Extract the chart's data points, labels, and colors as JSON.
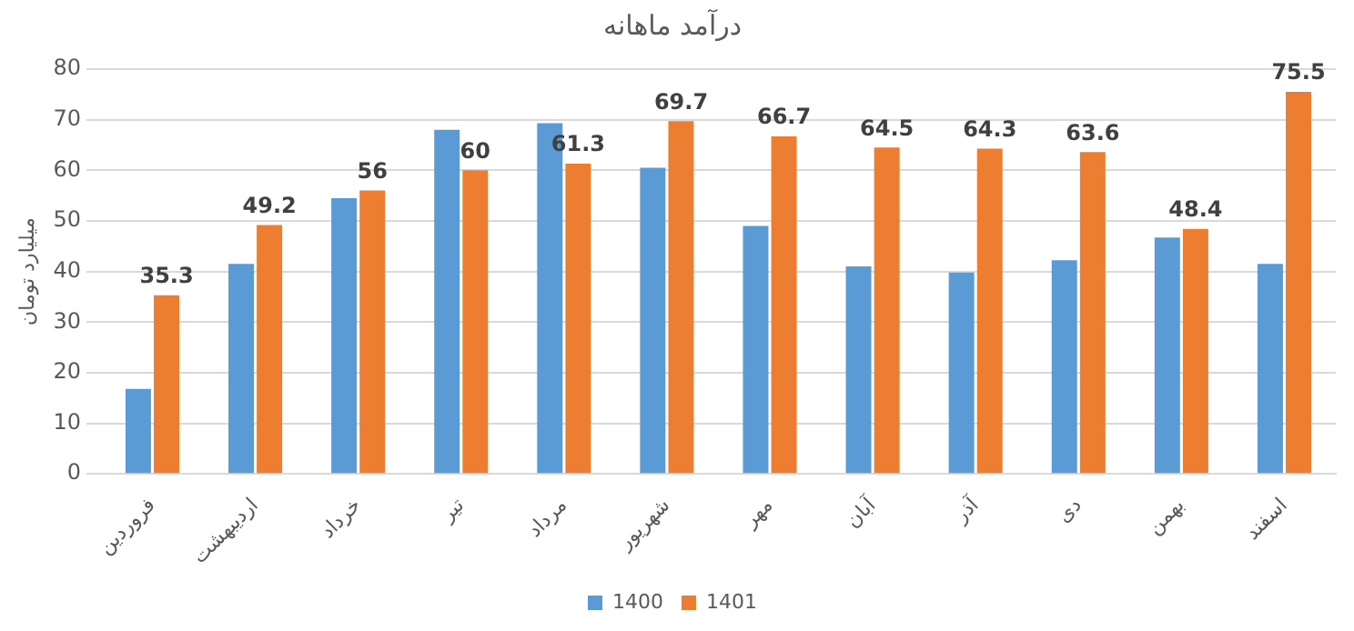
{
  "chart_data": {
    "type": "bar",
    "title": "درآمد ماهانه",
    "ylabel": "میلیارد تومان",
    "categories": [
      "فروردین",
      "اردیبهشت",
      "خرداد",
      "تیر",
      "مرداد",
      "شهریور",
      "مهر",
      "آبان",
      "آذر",
      "دی",
      "بهمن",
      "اسفند"
    ],
    "series": [
      {
        "name": "1400",
        "color": "#5b9bd5",
        "values": [
          16.8,
          41.5,
          54.5,
          68,
          69.3,
          60.5,
          49,
          41,
          39.8,
          42.2,
          46.7,
          41.5
        ]
      },
      {
        "name": "1401",
        "color": "#ed7d31",
        "values": [
          35.3,
          49.2,
          56,
          60,
          61.3,
          69.7,
          66.7,
          64.5,
          64.3,
          63.6,
          48.4,
          75.5
        ],
        "value_labels": [
          "35.3",
          "49.2",
          "56",
          "60",
          "61.3",
          "69.7",
          "66.7",
          "64.5",
          "64.3",
          "63.6",
          "48.4",
          "75.5"
        ]
      }
    ],
    "ylim": [
      0,
      80
    ],
    "yticks": [
      0,
      10,
      20,
      30,
      40,
      50,
      60,
      70,
      80
    ],
    "grid": "y",
    "legend": "bottom"
  }
}
